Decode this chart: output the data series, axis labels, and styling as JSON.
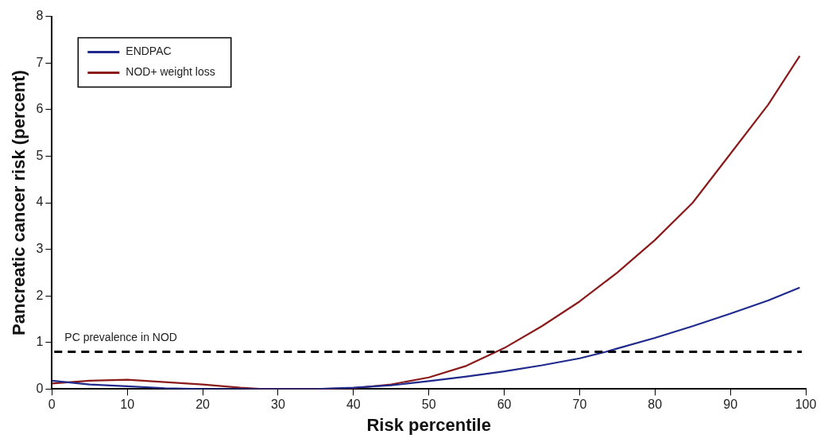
{
  "chart_data": {
    "type": "line",
    "xlabel": "Risk percentile",
    "ylabel": "Pancreatic cancer risk (percent)",
    "xlim": [
      0,
      100
    ],
    "xticks": [
      0,
      10,
      20,
      30,
      40,
      50,
      60,
      70,
      80,
      90,
      100
    ],
    "ylim": [
      0,
      8
    ],
    "yticks": [
      0,
      1,
      2,
      3,
      4,
      5,
      6,
      7,
      8
    ],
    "grid": false,
    "legend": "top left",
    "marker": "none",
    "line_style": "solid",
    "series": [
      {
        "name": "ENDPAC",
        "color": "#1f2a8c",
        "x": [
          0,
          5,
          10,
          15,
          20,
          25,
          30,
          35,
          40,
          45,
          50,
          55,
          60,
          65,
          70,
          73.5,
          75,
          80,
          85,
          90,
          95,
          99.2
        ],
        "values": [
          0.18,
          0.1,
          0.06,
          0.02,
          0,
          0,
          0,
          0,
          0.03,
          0.08,
          0.17,
          0.27,
          0.38,
          0.51,
          0.66,
          0.8,
          0.87,
          1.1,
          1.35,
          1.62,
          1.9,
          2.18
        ]
      },
      {
        "name": "NOD+ weight loss",
        "color": "#8b1a1a",
        "x": [
          0,
          5,
          10,
          15,
          20,
          25,
          28,
          30,
          35,
          40,
          45,
          50,
          55,
          60,
          65,
          70,
          75,
          80,
          85,
          90,
          95,
          99.2
        ],
        "values": [
          0.12,
          0.18,
          0.2,
          0.15,
          0.1,
          0.03,
          0,
          0,
          0,
          0.02,
          0.1,
          0.25,
          0.5,
          0.88,
          1.35,
          1.88,
          2.5,
          3.2,
          4.0,
          5.05,
          6.1,
          7.15
        ]
      }
    ],
    "ref_lines": [
      {
        "axis": "y",
        "value": 0.8,
        "label": "PC prevalence in NOD",
        "color": "#000000",
        "line_style": "dashed"
      }
    ]
  }
}
